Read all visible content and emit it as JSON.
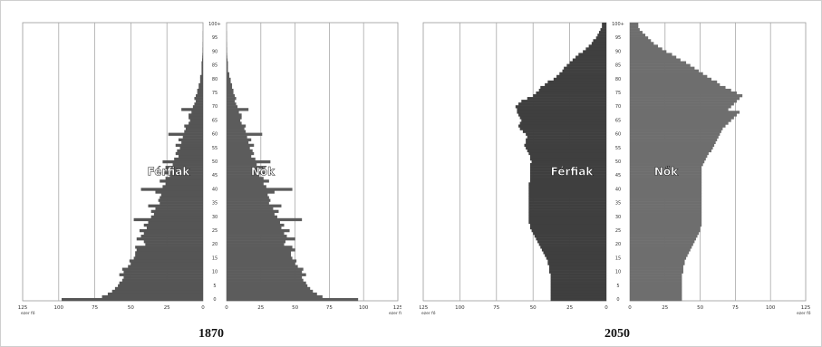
{
  "chart_data": [
    {
      "type": "bar",
      "title": "1870",
      "xlim": [
        0,
        125
      ],
      "x_ticks": [
        "125",
        "100",
        "75",
        "50",
        "25",
        "0",
        "0",
        "25",
        "50",
        "75",
        "100",
        "125"
      ],
      "x_unit": "ezer fő",
      "y_ticks": [
        "100+",
        "95",
        "90",
        "85",
        "80",
        "75",
        "70",
        "65",
        "60",
        "55",
        "50",
        "45",
        "40",
        "35",
        "30",
        "25",
        "20",
        "15",
        "10",
        "5",
        "0"
      ],
      "labels": {
        "left": "Férfiak",
        "right": "Nők"
      },
      "age_groups": [
        0,
        1,
        2,
        3,
        4,
        5,
        6,
        7,
        8,
        9,
        10,
        11,
        12,
        13,
        14,
        15,
        16,
        17,
        18,
        19,
        20,
        21,
        22,
        23,
        24,
        25,
        26,
        27,
        28,
        29,
        30,
        31,
        32,
        33,
        34,
        35,
        36,
        37,
        38,
        39,
        40,
        41,
        42,
        43,
        44,
        45,
        46,
        47,
        48,
        49,
        50,
        51,
        52,
        53,
        54,
        55,
        56,
        57,
        58,
        59,
        60,
        61,
        62,
        63,
        64,
        65,
        66,
        67,
        68,
        69,
        70,
        71,
        72,
        73,
        74,
        75,
        76,
        77,
        78,
        79,
        80,
        81,
        82,
        83,
        84,
        85,
        86,
        87,
        88,
        89,
        90,
        91,
        92,
        93,
        94,
        95,
        96,
        97,
        98,
        99,
        100
      ],
      "series": [
        {
          "name": "Férfiak",
          "values": [
            98,
            70,
            66,
            63,
            61,
            59,
            58,
            56,
            55,
            58,
            55,
            56,
            52,
            50,
            51,
            48,
            47,
            47,
            46,
            47,
            40,
            41,
            46,
            43,
            41,
            44,
            39,
            41,
            38,
            48,
            36,
            34,
            36,
            33,
            38,
            30,
            31,
            30,
            29,
            33,
            43,
            28,
            26,
            30,
            26,
            23,
            27,
            22,
            26,
            21,
            28,
            20,
            17,
            19,
            18,
            16,
            19,
            15,
            17,
            14,
            24,
            13,
            12,
            13,
            10,
            9,
            10,
            10,
            8,
            15,
            7,
            6,
            5,
            6,
            5,
            4,
            4,
            3,
            3,
            2,
            2,
            2,
            1,
            1,
            1,
            1,
            1,
            0.6,
            0.5,
            0.4,
            0.3,
            0.3,
            0.2,
            0.2,
            0.1,
            0.1,
            0.1,
            0.1,
            0,
            0,
            0
          ]
        },
        {
          "name": "Nők",
          "values": [
            96,
            70,
            66,
            63,
            61,
            59,
            58,
            56,
            55,
            58,
            55,
            56,
            52,
            50,
            51,
            48,
            47,
            47,
            50,
            48,
            42,
            43,
            50,
            44,
            42,
            46,
            40,
            42,
            39,
            55,
            37,
            35,
            38,
            34,
            40,
            31,
            32,
            31,
            30,
            35,
            48,
            29,
            27,
            31,
            27,
            24,
            28,
            23,
            27,
            22,
            32,
            21,
            18,
            20,
            19,
            17,
            20,
            16,
            18,
            15,
            26,
            14,
            13,
            14,
            11,
            10,
            11,
            11,
            9,
            16,
            8,
            7,
            6,
            7,
            6,
            5,
            5,
            4,
            4,
            3,
            3,
            2,
            2,
            1,
            1,
            1,
            1,
            0.7,
            0.5,
            0.4,
            0.3,
            0.3,
            0.2,
            0.2,
            0.1,
            0.1,
            0.1,
            0.1,
            0,
            0,
            0
          ]
        }
      ]
    },
    {
      "type": "bar",
      "title": "2050",
      "xlim": [
        0,
        125
      ],
      "x_ticks": [
        "125",
        "100",
        "75",
        "50",
        "25",
        "0",
        "0",
        "25",
        "50",
        "75",
        "100",
        "125"
      ],
      "x_unit": "ezer fő",
      "y_ticks": [
        "100+",
        "95",
        "90",
        "85",
        "80",
        "75",
        "70",
        "65",
        "60",
        "55",
        "50",
        "45",
        "40",
        "35",
        "30",
        "25",
        "20",
        "15",
        "10",
        "5",
        "0"
      ],
      "labels": {
        "left": "Férfiak",
        "right": "Nők"
      },
      "age_groups": [
        0,
        1,
        2,
        3,
        4,
        5,
        6,
        7,
        8,
        9,
        10,
        11,
        12,
        13,
        14,
        15,
        16,
        17,
        18,
        19,
        20,
        21,
        22,
        23,
        24,
        25,
        26,
        27,
        28,
        29,
        30,
        31,
        32,
        33,
        34,
        35,
        36,
        37,
        38,
        39,
        40,
        41,
        42,
        43,
        44,
        45,
        46,
        47,
        48,
        49,
        50,
        51,
        52,
        53,
        54,
        55,
        56,
        57,
        58,
        59,
        60,
        61,
        62,
        63,
        64,
        65,
        66,
        67,
        68,
        69,
        70,
        71,
        72,
        73,
        74,
        75,
        76,
        77,
        78,
        79,
        80,
        81,
        82,
        83,
        84,
        85,
        86,
        87,
        88,
        89,
        90,
        91,
        92,
        93,
        94,
        95,
        96,
        97,
        98,
        99,
        100
      ],
      "series": [
        {
          "name": "Férfiak",
          "values": [
            38,
            38,
            38,
            38,
            38,
            38,
            38,
            38,
            38,
            38,
            39,
            39,
            39,
            40,
            40,
            41,
            42,
            43,
            44,
            45,
            46,
            47,
            48,
            49,
            50,
            51,
            52,
            52,
            53,
            53,
            53,
            53,
            53,
            53,
            53,
            53,
            53,
            53,
            53,
            53,
            53,
            53,
            53,
            52,
            52,
            52,
            52,
            52,
            52,
            52,
            51,
            52,
            52,
            53,
            54,
            55,
            56,
            55,
            55,
            54,
            55,
            57,
            59,
            60,
            59,
            58,
            59,
            60,
            61,
            61,
            62,
            60,
            58,
            54,
            50,
            48,
            46,
            45,
            42,
            40,
            36,
            34,
            32,
            30,
            29,
            27,
            25,
            23,
            21,
            19,
            16,
            14,
            12,
            10,
            9,
            7,
            6,
            5,
            4,
            3,
            3
          ]
        },
        {
          "name": "Nők",
          "values": [
            37,
            37,
            37,
            37,
            37,
            37,
            37,
            37,
            37,
            37,
            38,
            38,
            38,
            39,
            39,
            40,
            41,
            42,
            43,
            44,
            45,
            46,
            47,
            48,
            49,
            50,
            50,
            51,
            51,
            51,
            51,
            51,
            51,
            51,
            51,
            51,
            51,
            51,
            51,
            51,
            51,
            51,
            51,
            51,
            51,
            51,
            51,
            51,
            51,
            52,
            53,
            54,
            55,
            56,
            58,
            59,
            60,
            61,
            62,
            63,
            64,
            65,
            66,
            68,
            70,
            72,
            74,
            76,
            78,
            70,
            72,
            74,
            76,
            78,
            80,
            76,
            72,
            68,
            64,
            62,
            58,
            55,
            52,
            49,
            46,
            43,
            40,
            36,
            33,
            30,
            26,
            23,
            20,
            17,
            15,
            13,
            11,
            9,
            7,
            6,
            6
          ]
        }
      ]
    }
  ]
}
